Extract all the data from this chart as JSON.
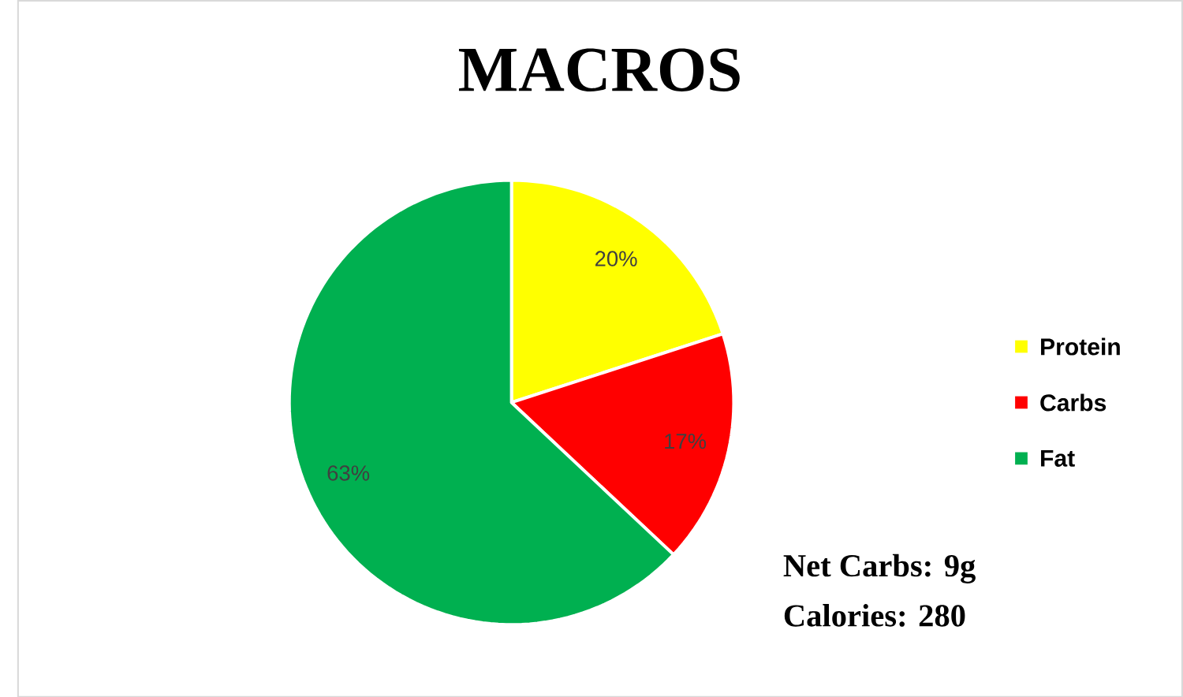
{
  "chart_data": {
    "type": "pie",
    "title": "MACROS",
    "categories": [
      "Protein",
      "Carbs",
      "Fat"
    ],
    "values": [
      20,
      17,
      63
    ],
    "colors": [
      "#ffff00",
      "#ff0000",
      "#00b050"
    ],
    "value_labels": [
      "20%",
      "17%",
      "63%"
    ],
    "legend": "right",
    "annotations": [
      "Net Carbs: 9g",
      "Calories: 280"
    ]
  }
}
